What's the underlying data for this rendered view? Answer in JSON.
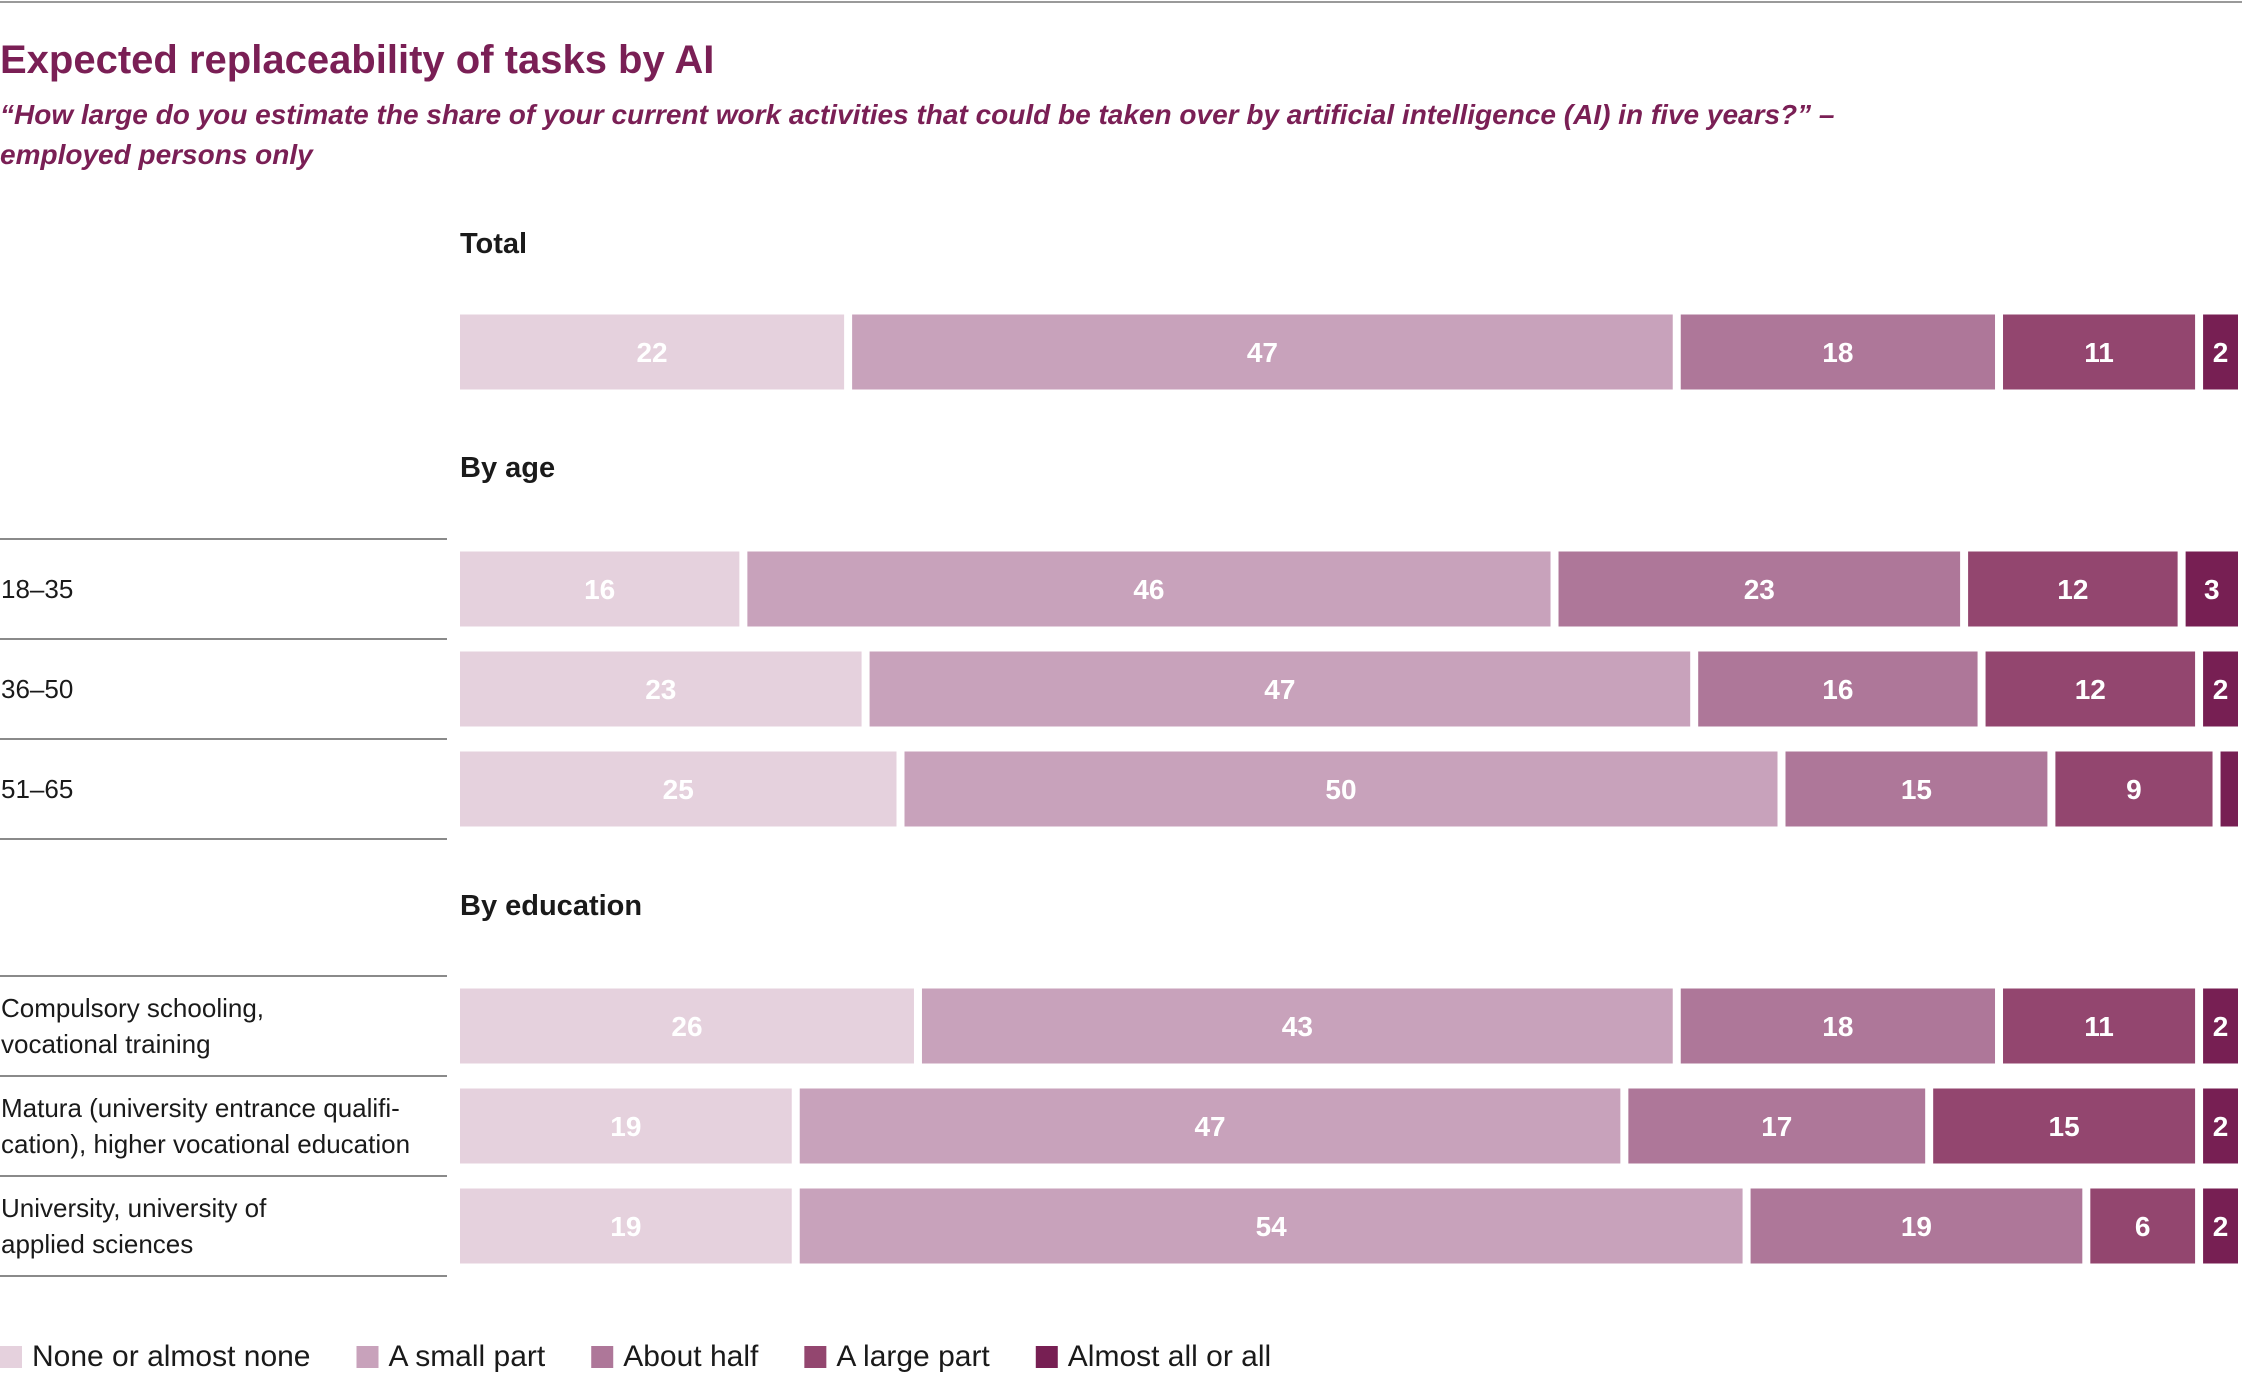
{
  "chart_data": {
    "type": "bar",
    "orientation": "horizontal",
    "stacked": true,
    "title": "Expected replaceability of tasks by AI",
    "subtitle_lines": [
      "“How large do you estimate the share of your current work activities that could be taken over by artificial intelligence (AI) in five years?” –",
      "employed persons only"
    ],
    "legend_position": "bottom-left",
    "series": [
      {
        "name": "None or almost none",
        "color": "#e5d1dd"
      },
      {
        "name": "A small part",
        "color": "#c8a2bb"
      },
      {
        "name": "About half",
        "color": "#ae7799"
      },
      {
        "name": "A large part",
        "color": "#93466f"
      },
      {
        "name": "Almost all or all",
        "color": "#771f53"
      }
    ],
    "groups": [
      {
        "heading": "Total",
        "rows": [
          {
            "label_lines": [],
            "values": [
              22,
              47,
              18,
              11,
              2
            ],
            "labels": [
              "22",
              "47",
              "18",
              "11",
              "2"
            ]
          }
        ]
      },
      {
        "heading": "By age",
        "rows": [
          {
            "label_lines": [
              "18–35"
            ],
            "values": [
              16,
              46,
              23,
              12,
              3
            ],
            "labels": [
              "16",
              "46",
              "23",
              "12",
              "3"
            ]
          },
          {
            "label_lines": [
              "36–50"
            ],
            "values": [
              23,
              47,
              16,
              12,
              2
            ],
            "labels": [
              "23",
              "47",
              "16",
              "12",
              "2"
            ]
          },
          {
            "label_lines": [
              "51–65"
            ],
            "values": [
              25,
              50,
              15,
              9,
              1
            ],
            "labels": [
              "25",
              "50",
              "15",
              "9",
              ""
            ]
          }
        ]
      },
      {
        "heading": "By education",
        "rows": [
          {
            "label_lines": [
              "Compulsory schooling,",
              "vocational training"
            ],
            "values": [
              26,
              43,
              18,
              11,
              2
            ],
            "labels": [
              "26",
              "43",
              "18",
              "11",
              "2"
            ]
          },
          {
            "label_lines": [
              "Matura (university entrance qualifi-",
              "cation), higher vocational education"
            ],
            "values": [
              19,
              47,
              17,
              15,
              2
            ],
            "labels": [
              "19",
              "47",
              "17",
              "15",
              "2"
            ]
          },
          {
            "label_lines": [
              "University, university of",
              "applied sciences"
            ],
            "values": [
              19,
              54,
              19,
              6,
              2
            ],
            "labels": [
              "19",
              "54",
              "19",
              "6",
              "2"
            ]
          }
        ]
      }
    ]
  }
}
